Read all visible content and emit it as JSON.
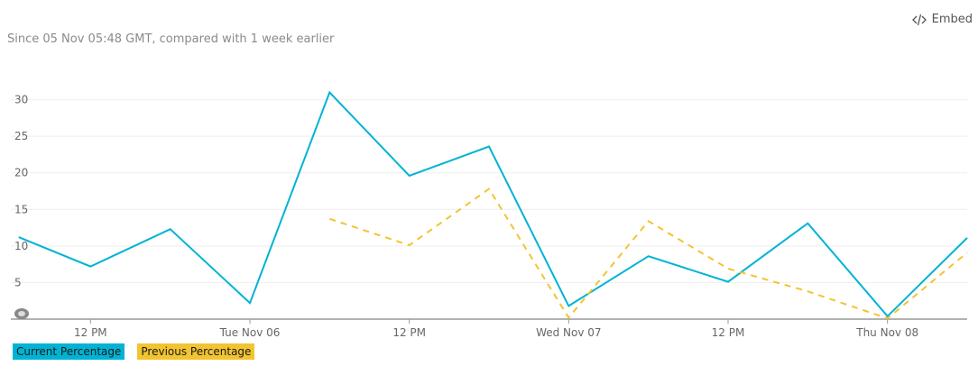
{
  "header": {
    "subtitle": "Since 05 Nov 05:48 GMT, compared with 1 week earlier",
    "embed_label": "Embed"
  },
  "colors": {
    "current": "#00b3d4",
    "previous": "#f2c431",
    "grid": "#eeeeee",
    "axis": "#999999"
  },
  "chart_data": {
    "type": "line",
    "title": "",
    "xlabel": "",
    "ylabel": "",
    "ylim": [
      0,
      35
    ],
    "xlim": [
      0,
      12
    ],
    "y_ticks": [
      5,
      10,
      15,
      20,
      25,
      30
    ],
    "x_ticks": [
      {
        "x": 0.5,
        "label": "12 PM"
      },
      {
        "x": 1.5,
        "label": "Tue Nov 06"
      },
      {
        "x": 2.5,
        "label": "12 PM"
      },
      {
        "x": 3.5,
        "label": "Wed Nov 07"
      },
      {
        "x": 4.5,
        "label": "12 PM"
      },
      {
        "x": 5.5,
        "label": "Thu Nov 08"
      }
    ],
    "legend_position": "bottom-left",
    "grid": true,
    "series": [
      {
        "name": "Current Percentage",
        "style": "solid",
        "x": [
          0.05,
          0.5,
          1.0,
          1.5,
          2.0,
          2.5,
          3.0,
          3.5,
          4.0,
          4.5,
          5.0,
          5.5,
          6.0
        ],
        "values": [
          11.2,
          7.2,
          12.3,
          2.2,
          31,
          19.6,
          23.6,
          1.8,
          8.6,
          5.1,
          13.1,
          0.4,
          11.1
        ]
      },
      {
        "name": "Previous Percentage",
        "style": "dashed",
        "x": [
          2.0,
          2.5,
          3.0,
          3.5,
          4.0,
          4.5,
          5.0,
          5.5,
          6.0
        ],
        "values": [
          13.7,
          10.1,
          17.8,
          0.2,
          13.4,
          6.9,
          3.8,
          0.1,
          9.1
        ]
      }
    ]
  }
}
